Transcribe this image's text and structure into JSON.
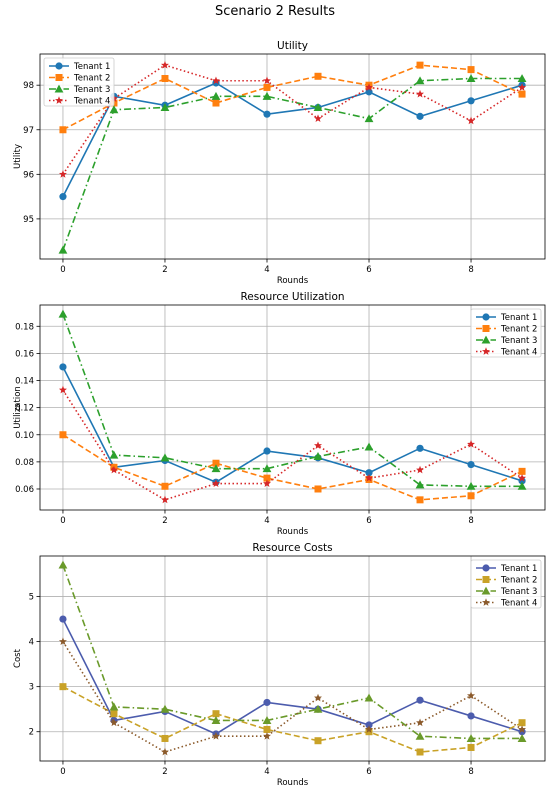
{
  "figure": {
    "title": "Scenario 2 Results"
  },
  "chart_data": [
    {
      "type": "line",
      "title": "Utility",
      "xlabel": "Rounds",
      "ylabel": "Utility",
      "x": [
        0,
        1,
        2,
        3,
        4,
        5,
        6,
        7,
        8,
        9
      ],
      "xticks": [
        0,
        2,
        4,
        6,
        8
      ],
      "xlim": [
        -0.45,
        9.45
      ],
      "yticks": [
        95,
        96,
        97,
        98
      ],
      "ylim": [
        94.1,
        98.7
      ],
      "grid": true,
      "legend": "top-left",
      "series": [
        {
          "name": "Tenant 1",
          "color": "#1f77b4",
          "marker": "circle",
          "dash": "solid",
          "values": [
            95.5,
            97.75,
            97.55,
            98.05,
            97.35,
            97.5,
            97.85,
            97.3,
            97.65,
            98.0
          ]
        },
        {
          "name": "Tenant 2",
          "color": "#ff7f0e",
          "marker": "square",
          "dash": "dashed",
          "values": [
            97.0,
            97.6,
            98.15,
            97.6,
            97.95,
            98.2,
            98.0,
            98.45,
            98.35,
            97.8
          ]
        },
        {
          "name": "Tenant 3",
          "color": "#2ca02c",
          "marker": "triangle",
          "dash": "dashdot",
          "values": [
            94.3,
            97.45,
            97.5,
            97.75,
            97.75,
            97.5,
            97.25,
            98.1,
            98.15,
            98.15
          ]
        },
        {
          "name": "Tenant 4",
          "color": "#d62728",
          "marker": "star",
          "dash": "dotted",
          "values": [
            96.0,
            97.7,
            98.45,
            98.1,
            98.1,
            97.25,
            97.95,
            97.8,
            97.2,
            97.95
          ]
        }
      ]
    },
    {
      "type": "line",
      "title": "Resource Utilization",
      "xlabel": "Rounds",
      "ylabel": "Utilization",
      "x": [
        0,
        1,
        2,
        3,
        4,
        5,
        6,
        7,
        8,
        9
      ],
      "xticks": [
        0,
        2,
        4,
        6,
        8
      ],
      "xlim": [
        -0.45,
        9.45
      ],
      "yticks": [
        0.06,
        0.08,
        0.1,
        0.12,
        0.14,
        0.16,
        0.18
      ],
      "yticklabels": [
        "0.06",
        "0.08",
        "0.10",
        "0.12",
        "0.14",
        "0.16",
        "0.18"
      ],
      "ylim": [
        0.0445,
        0.1957
      ],
      "grid": true,
      "legend": "top-right",
      "series": [
        {
          "name": "Tenant 1",
          "color": "#1f77b4",
          "marker": "circle",
          "dash": "solid",
          "values": [
            0.15,
            0.076,
            0.081,
            0.065,
            0.088,
            0.083,
            0.072,
            0.09,
            0.078,
            0.066
          ]
        },
        {
          "name": "Tenant 2",
          "color": "#ff7f0e",
          "marker": "square",
          "dash": "dashed",
          "values": [
            0.1,
            0.076,
            0.062,
            0.079,
            0.068,
            0.06,
            0.067,
            0.052,
            0.055,
            0.073
          ]
        },
        {
          "name": "Tenant 3",
          "color": "#2ca02c",
          "marker": "triangle",
          "dash": "dashdot",
          "values": [
            0.189,
            0.085,
            0.083,
            0.075,
            0.075,
            0.084,
            0.091,
            0.063,
            0.062,
            0.062
          ]
        },
        {
          "name": "Tenant 4",
          "color": "#d62728",
          "marker": "star",
          "dash": "dotted",
          "values": [
            0.133,
            0.074,
            0.052,
            0.064,
            0.064,
            0.092,
            0.068,
            0.074,
            0.093,
            0.068
          ]
        }
      ]
    },
    {
      "type": "line",
      "title": "Resource Costs",
      "xlabel": "Rounds",
      "ylabel": "Cost",
      "x": [
        0,
        1,
        2,
        3,
        4,
        5,
        6,
        7,
        8,
        9
      ],
      "xticks": [
        0,
        2,
        4,
        6,
        8
      ],
      "xlim": [
        -0.45,
        9.45
      ],
      "yticks": [
        2,
        3,
        4,
        5
      ],
      "ylim": [
        1.35,
        5.9
      ],
      "grid": true,
      "legend": "top-right",
      "series": [
        {
          "name": "Tenant 1",
          "color": "#4c5cad",
          "marker": "circle",
          "dash": "solid",
          "values": [
            4.5,
            2.25,
            2.45,
            1.95,
            2.65,
            2.5,
            2.15,
            2.7,
            2.35,
            2.0
          ]
        },
        {
          "name": "Tenant 2",
          "color": "#c9a227",
          "marker": "square",
          "dash": "dashed",
          "values": [
            3.0,
            2.4,
            1.85,
            2.4,
            2.05,
            1.8,
            2.0,
            1.55,
            1.65,
            2.2
          ]
        },
        {
          "name": "Tenant 3",
          "color": "#6a9a2a",
          "marker": "triangle",
          "dash": "dashdot",
          "values": [
            5.7,
            2.55,
            2.5,
            2.25,
            2.25,
            2.5,
            2.75,
            1.9,
            1.85,
            1.85
          ]
        },
        {
          "name": "Tenant 4",
          "color": "#8b5a2b",
          "marker": "star",
          "dash": "dotted",
          "values": [
            4.0,
            2.2,
            1.55,
            1.9,
            1.9,
            2.75,
            2.05,
            2.2,
            2.8,
            2.05
          ]
        }
      ]
    }
  ]
}
